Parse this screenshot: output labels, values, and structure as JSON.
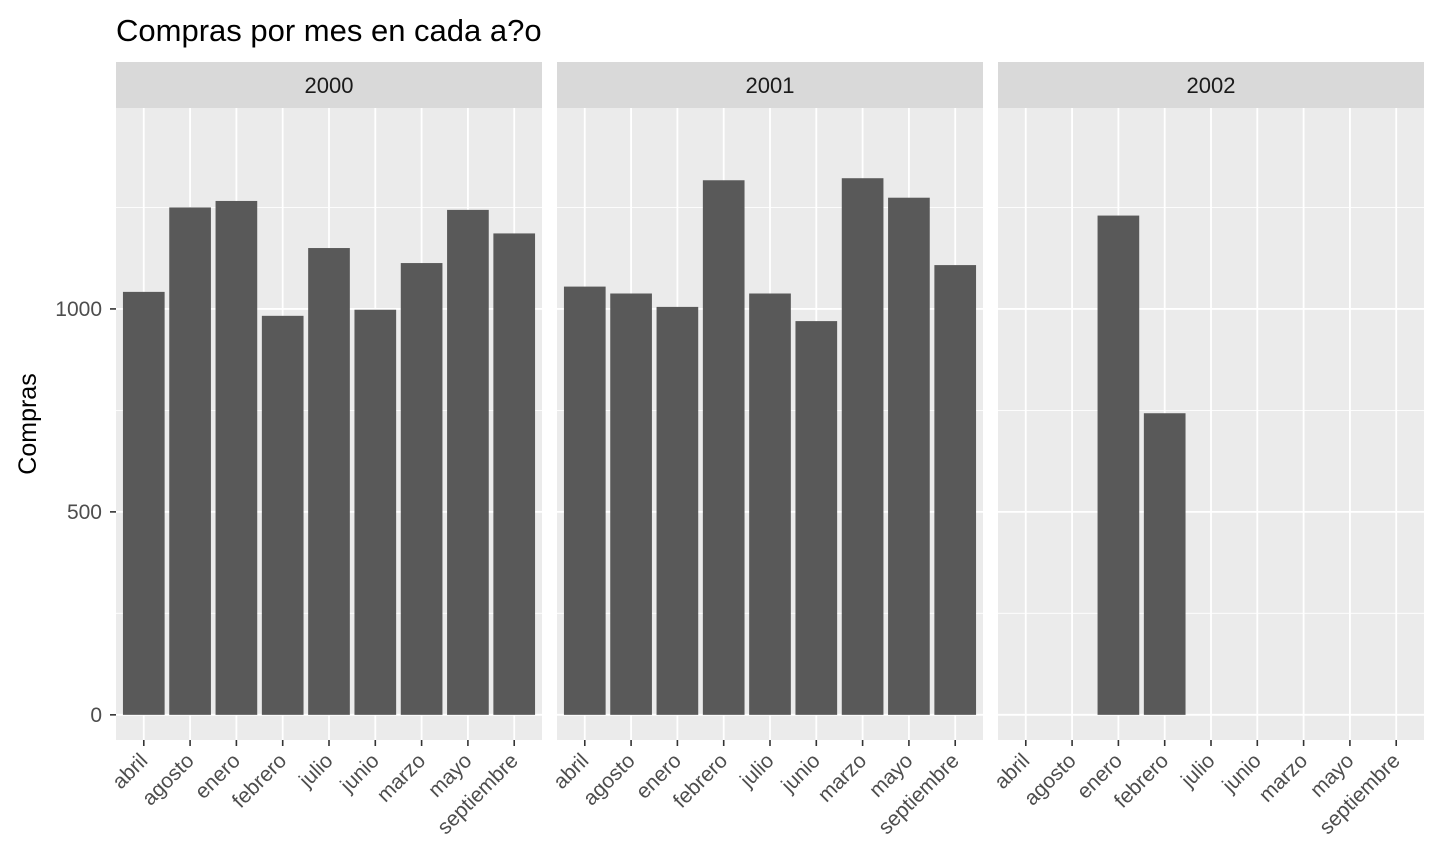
{
  "chart_data": {
    "type": "bar",
    "title": "Compras por mes en cada a?o",
    "xlabel": "",
    "ylabel": "Compras",
    "ylim": [
      -62,
      1495
    ],
    "yticks": [
      0,
      500,
      1000
    ],
    "grid": true,
    "categories": [
      "abril",
      "agosto",
      "enero",
      "febrero",
      "julio",
      "junio",
      "marzo",
      "mayo",
      "septiembre"
    ],
    "panels": [
      {
        "label": "2000",
        "values": [
          1042,
          1250,
          1266,
          983,
          1150,
          998,
          1113,
          1244,
          1186
        ]
      },
      {
        "label": "2001",
        "values": [
          1055,
          1038,
          1005,
          1317,
          1038,
          970,
          1322,
          1274,
          1108
        ]
      },
      {
        "label": "2002",
        "values": [
          null,
          null,
          1230,
          743,
          null,
          null,
          null,
          null,
          null
        ]
      }
    ]
  },
  "colors": {
    "bar": "#595959",
    "panel_bg": "#ebebeb",
    "strip_bg": "#d9d9d9",
    "grid": "#ffffff",
    "tick": "#333333"
  }
}
